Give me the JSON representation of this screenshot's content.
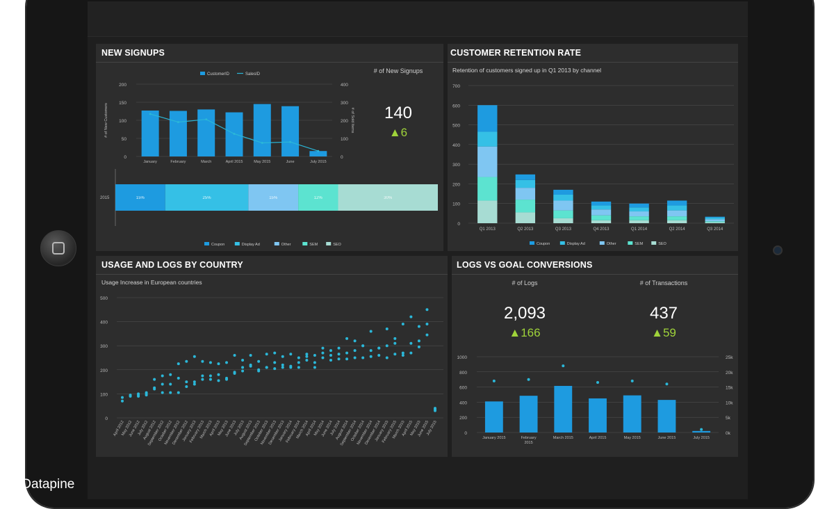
{
  "credit": "Datapine",
  "colors": {
    "bar": "#1e9be0",
    "line": "#2bb7d8",
    "coupon": "#1e9be0",
    "display_ad": "#35c0e6",
    "other": "#7fc6f2",
    "sem": "#5ce3d0",
    "seo": "#a7dcd3",
    "delta": "#9fd33a"
  },
  "signups": {
    "title": "NEW SIGNUPS",
    "kpi_label": "# of New Signups",
    "kpi_value": "140",
    "kpi_delta": "6",
    "left_axis_label": "# of New Customers",
    "right_axis_label": "# of Sold Items",
    "legend_customer": "CustomerID",
    "legend_sales": "SalesID",
    "months": [
      "January",
      "February",
      "March",
      "April 2015",
      "May 2015",
      "June",
      "July 2015"
    ],
    "bar_row_label": "2015"
  },
  "retention": {
    "title": "CUSTOMER RETENTION RATE",
    "subtitle": "Retention of customers signed up in Q1 2013 by channel"
  },
  "usage": {
    "title": "USAGE AND LOGS BY COUNTRY",
    "subtitle": "Usage Increase in European countries"
  },
  "goals": {
    "title": "LOGS VS GOAL CONVERSIONS",
    "logs_label": "# of Logs",
    "logs_value": "2,093",
    "logs_delta": "166",
    "tx_label": "# of Transactions",
    "tx_value": "437",
    "tx_delta": "59"
  },
  "chart_data": [
    {
      "type": "bar",
      "name": "signups-combo",
      "categories": [
        "January",
        "February",
        "March",
        "April 2015",
        "May 2015",
        "June",
        "July 2015"
      ],
      "series": [
        {
          "name": "CustomerID",
          "kind": "bar",
          "axis": "left",
          "values": [
            127,
            126,
            130,
            122,
            145,
            139,
            15
          ]
        },
        {
          "name": "SalesID",
          "kind": "line",
          "axis": "right",
          "values": [
            235,
            190,
            205,
            125,
            75,
            80,
            30
          ]
        }
      ],
      "ylim": [
        0,
        200
      ],
      "yticks": [
        0,
        50,
        100,
        150,
        200
      ],
      "y2lim": [
        0,
        400
      ],
      "y2ticks": [
        0,
        100,
        200,
        300,
        400
      ]
    },
    {
      "type": "bar",
      "name": "signups-by-channel",
      "categories": [
        "2015"
      ],
      "series": [
        {
          "name": "Coupon",
          "pct_label": "15%",
          "value": 15
        },
        {
          "name": "Display Ad",
          "pct_label": "25%",
          "value": 25
        },
        {
          "name": "Other",
          "pct_label": "15%",
          "value": 15
        },
        {
          "name": "SEM",
          "pct_label": "12%",
          "value": 12
        },
        {
          "name": "SEO",
          "pct_label": "30%",
          "value": 30
        }
      ],
      "legend": [
        "Coupon",
        "Display Ad",
        "Other",
        "SEM",
        "SEO"
      ]
    },
    {
      "type": "bar",
      "name": "retention-stacked",
      "categories": [
        "Q1 2013",
        "Q2 2013",
        "Q3 2013",
        "Q4 2013",
        "Q1 2014",
        "Q2 2014",
        "Q3 2014"
      ],
      "series": [
        {
          "name": "SEO",
          "values": [
            115,
            55,
            25,
            15,
            15,
            15,
            5
          ]
        },
        {
          "name": "SEM",
          "values": [
            120,
            65,
            40,
            25,
            20,
            20,
            5
          ]
        },
        {
          "name": "Other",
          "values": [
            155,
            60,
            50,
            30,
            25,
            30,
            10
          ]
        },
        {
          "name": "Display Ad",
          "values": [
            75,
            40,
            30,
            20,
            20,
            25,
            8
          ]
        },
        {
          "name": "Coupon",
          "values": [
            135,
            28,
            25,
            20,
            20,
            25,
            5
          ]
        }
      ],
      "ylim": [
        0,
        700
      ],
      "yticks": [
        0,
        100,
        200,
        300,
        400,
        500,
        600,
        700
      ],
      "legend": [
        "Coupon",
        "Display Ad",
        "Other",
        "SEM",
        "SEO"
      ]
    },
    {
      "type": "scatter",
      "name": "usage-scatter",
      "categories": [
        "April 2012",
        "May 2012",
        "June 2012",
        "July 2012",
        "August 2012",
        "September 2012",
        "October 2012",
        "November 2012",
        "December 2012",
        "January 2013",
        "February 2013",
        "March 2013",
        "April 2013",
        "May 2013",
        "June 2013",
        "July 2013",
        "August 2013",
        "September 2013",
        "October 2013",
        "November 2013",
        "December 2013",
        "January 2014",
        "February 2014",
        "March 2014",
        "April 2014",
        "May 2014",
        "June 2014",
        "July 2014",
        "August 2014",
        "September 2014",
        "October 2014",
        "November 2014",
        "December 2014",
        "January 2015",
        "February 2015",
        "March 2015",
        "April 2015",
        "May 2015",
        "June 2015",
        "July 2015"
      ],
      "series": [
        {
          "name": "A",
          "values": [
            85,
            95,
            95,
            100,
            160,
            175,
            180,
            225,
            235,
            255,
            235,
            230,
            225,
            230,
            260,
            240,
            260,
            235,
            265,
            270,
            255,
            265,
            250,
            255,
            260,
            270,
            280,
            290,
            270,
            280,
            300,
            280,
            290,
            300,
            310,
            270,
            310,
            320,
            390,
            40
          ]
        },
        {
          "name": "B",
          "values": [
            70,
            90,
            90,
            95,
            120,
            140,
            140,
            165,
            130,
            140,
            175,
            175,
            155,
            165,
            185,
            195,
            215,
            195,
            210,
            205,
            210,
            215,
            210,
            240,
            210,
            250,
            240,
            245,
            245,
            250,
            250,
            255,
            260,
            250,
            265,
            260,
            270,
            295,
            345,
            30
          ]
        },
        {
          "name": "C",
          "values": [
            null,
            null,
            100,
            105,
            125,
            105,
            105,
            105,
            150,
            150,
            160,
            160,
            180,
            160,
            190,
            210,
            220,
            200,
            210,
            230,
            220,
            210,
            230,
            265,
            230,
            290,
            260,
            265,
            330,
            320,
            300,
            360,
            290,
            370,
            330,
            390,
            420,
            380,
            450,
            35
          ]
        }
      ],
      "ylim": [
        0,
        500
      ],
      "yticks": [
        0,
        100,
        200,
        300,
        400,
        500
      ]
    },
    {
      "type": "bar",
      "name": "logs-vs-goals",
      "categories": [
        "January 2015",
        "February 2015",
        "March 2015",
        "April 2015",
        "May 2015",
        "June 2015",
        "July 2015"
      ],
      "series": [
        {
          "name": "# of Logs",
          "kind": "bar",
          "axis": "left",
          "values": [
            410,
            485,
            615,
            450,
            490,
            430,
            20
          ]
        },
        {
          "name": "# of Transactions",
          "kind": "scatter",
          "axis": "right",
          "values": [
            17000,
            17500,
            22000,
            16500,
            17000,
            16000,
            1000
          ]
        }
      ],
      "ylim": [
        0,
        1000
      ],
      "yticks": [
        0,
        200,
        400,
        600,
        800,
        1000
      ],
      "y2lim": [
        0,
        25000
      ],
      "y2ticks": [
        "0k",
        "5k",
        "10k",
        "15k",
        "20k",
        "25k"
      ]
    }
  ]
}
